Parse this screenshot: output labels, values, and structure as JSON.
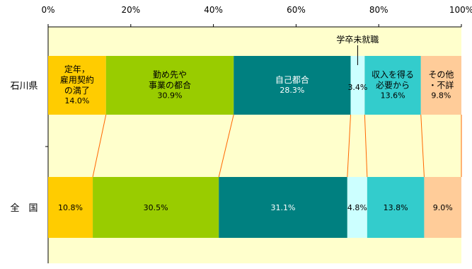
{
  "chart_data": {
    "type": "bar",
    "orientation": "horizontal",
    "stacked": "100%",
    "x_ticks": [
      "0%",
      "20%",
      "40%",
      "60%",
      "80%",
      "100%"
    ],
    "xlim": [
      0,
      100
    ],
    "rows": [
      {
        "name": "石川県",
        "values": [
          14.0,
          30.9,
          28.3,
          3.4,
          13.6,
          9.8
        ]
      },
      {
        "name": "全　国",
        "values": [
          10.8,
          30.5,
          31.1,
          4.8,
          13.8,
          9.0
        ]
      }
    ],
    "segments": [
      {
        "label_lines": [
          "定年，",
          "雇用契約",
          "の満了"
        ],
        "color": "#ffcc00"
      },
      {
        "label_lines": [
          "勤め先や",
          "事業の都合"
        ],
        "color": "#99cc00"
      },
      {
        "label_lines": [
          "自己都合"
        ],
        "color": "#008080"
      },
      {
        "label_lines": [
          "学卒未就職"
        ],
        "color": "#ccffff"
      },
      {
        "label_lines": [
          "収入を得る",
          "必要から"
        ],
        "color": "#33cccc"
      },
      {
        "label_lines": [
          "その他",
          "・不詳"
        ],
        "color": "#ffcc99"
      }
    ],
    "value_labels": [
      [
        "14.0%",
        "30.9%",
        "28.3%",
        "3.4%",
        "13.6%",
        "9.8%"
      ],
      [
        "10.8%",
        "30.5%",
        "31.1%",
        "4.8%",
        "13.8%",
        "9.0%"
      ]
    ],
    "plot_background": "#ffffcc",
    "connector_color": "#ff6600"
  }
}
